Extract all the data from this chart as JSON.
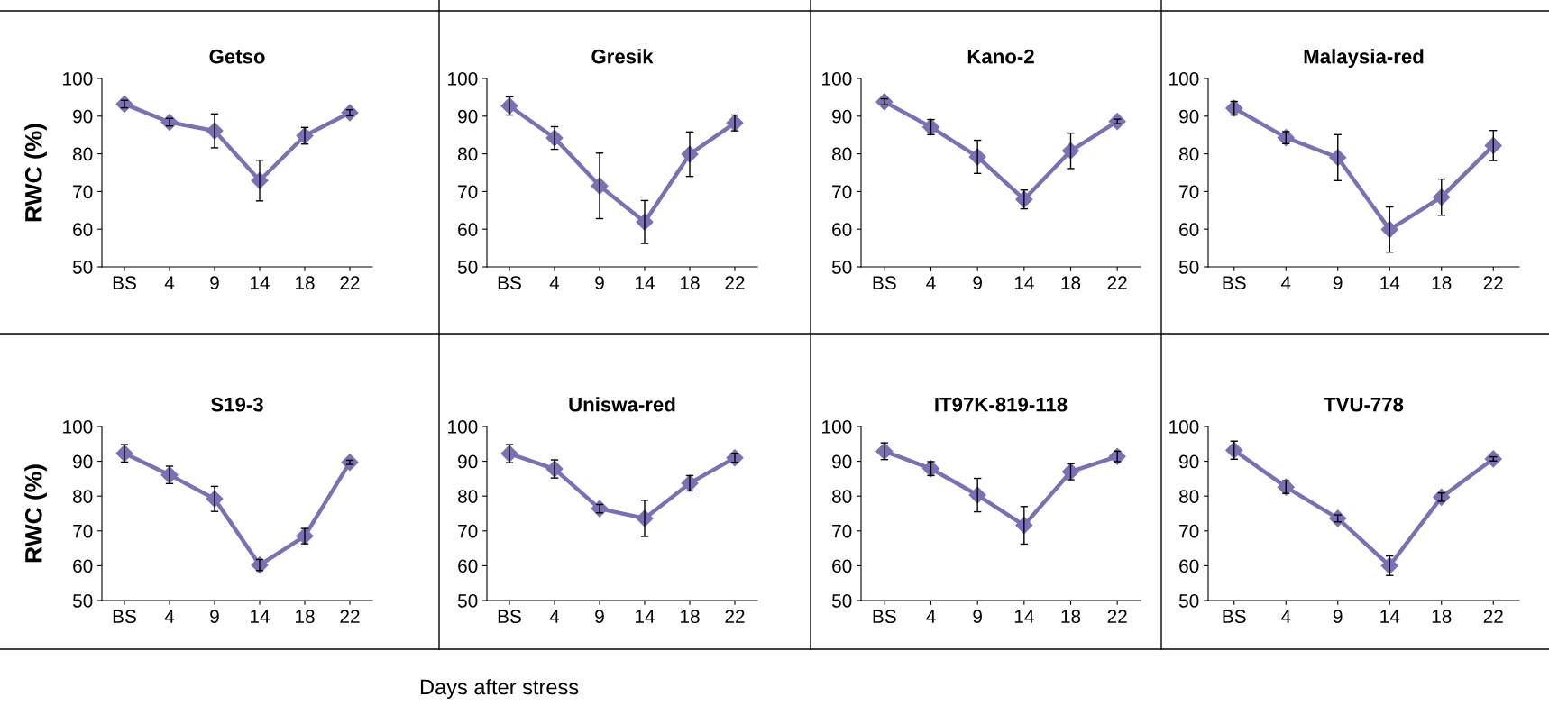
{
  "chart_data": [
    {
      "type": "line",
      "title": "Getso",
      "ylabel": "RWC (%)",
      "categories": [
        "BS",
        "4",
        "9",
        "14",
        "18",
        "22"
      ],
      "ylim": [
        50,
        100
      ],
      "yticks": [
        50,
        60,
        70,
        80,
        90,
        100
      ],
      "marker": "diamond",
      "grid": false,
      "series": [
        {
          "color": "#7b70b5",
          "values": [
            93.2,
            88.4,
            86.1,
            72.9,
            84.8,
            90.9
          ],
          "errors": [
            1.0,
            1.0,
            4.5,
            5.4,
            2.2,
            0.8
          ]
        }
      ]
    },
    {
      "type": "line",
      "title": "Gresik",
      "categories": [
        "BS",
        "4",
        "9",
        "14",
        "18",
        "22"
      ],
      "ylim": [
        50,
        100
      ],
      "yticks": [
        50,
        60,
        70,
        80,
        90,
        100
      ],
      "marker": "diamond",
      "grid": false,
      "series": [
        {
          "color": "#7b70b5",
          "values": [
            92.7,
            84.2,
            71.5,
            61.9,
            79.9,
            88.2
          ],
          "errors": [
            2.4,
            3.0,
            8.7,
            5.7,
            5.9,
            2.1
          ]
        }
      ]
    },
    {
      "type": "line",
      "title": "Kano-2",
      "categories": [
        "BS",
        "4",
        "9",
        "14",
        "18",
        "22"
      ],
      "ylim": [
        50,
        100
      ],
      "yticks": [
        50,
        60,
        70,
        80,
        90,
        100
      ],
      "marker": "diamond",
      "grid": false,
      "series": [
        {
          "color": "#7b70b5",
          "values": [
            93.8,
            87.1,
            79.2,
            67.9,
            80.8,
            88.6
          ],
          "errors": [
            0.8,
            2.0,
            4.4,
            2.5,
            4.7,
            0.6
          ]
        }
      ]
    },
    {
      "type": "line",
      "title": "Malaysia-red",
      "categories": [
        "BS",
        "4",
        "9",
        "14",
        "18",
        "22"
      ],
      "ylim": [
        50,
        100
      ],
      "yticks": [
        50,
        60,
        70,
        80,
        90,
        100
      ],
      "marker": "diamond",
      "grid": false,
      "series": [
        {
          "color": "#7b70b5",
          "values": [
            92.1,
            84.3,
            79.0,
            59.9,
            68.5,
            82.2
          ],
          "errors": [
            1.8,
            1.6,
            6.1,
            6.0,
            4.8,
            4.0
          ]
        }
      ]
    },
    {
      "type": "line",
      "title": "S19-3",
      "ylabel": "RWC (%)",
      "categories": [
        "BS",
        "4",
        "9",
        "14",
        "18",
        "22"
      ],
      "ylim": [
        50,
        100
      ],
      "yticks": [
        50,
        60,
        70,
        80,
        90,
        100
      ],
      "marker": "diamond",
      "grid": false,
      "series": [
        {
          "color": "#7b70b5",
          "values": [
            92.3,
            86.1,
            79.2,
            60.2,
            68.5,
            89.7
          ],
          "errors": [
            2.5,
            2.5,
            3.6,
            1.6,
            2.2,
            0.6
          ]
        }
      ]
    },
    {
      "type": "line",
      "title": "Uniswa-red",
      "categories": [
        "BS",
        "4",
        "9",
        "14",
        "18",
        "22"
      ],
      "ylim": [
        50,
        100
      ],
      "yticks": [
        50,
        60,
        70,
        80,
        90,
        100
      ],
      "marker": "diamond",
      "grid": false,
      "annotations": [
        "Days after stress"
      ],
      "series": [
        {
          "color": "#7b70b5",
          "values": [
            92.2,
            87.8,
            76.4,
            73.6,
            83.7,
            91.0
          ],
          "errors": [
            2.6,
            2.6,
            1.2,
            5.2,
            2.2,
            1.3
          ]
        }
      ]
    },
    {
      "type": "line",
      "title": "IT97K-819-118",
      "categories": [
        "BS",
        "4",
        "9",
        "14",
        "18",
        "22"
      ],
      "ylim": [
        50,
        100
      ],
      "yticks": [
        50,
        60,
        70,
        80,
        90,
        100
      ],
      "marker": "diamond",
      "grid": false,
      "series": [
        {
          "color": "#7b70b5",
          "values": [
            92.9,
            87.9,
            80.3,
            71.6,
            87.0,
            91.4
          ],
          "errors": [
            2.4,
            2.0,
            4.8,
            5.4,
            2.3,
            1.5
          ]
        }
      ]
    },
    {
      "type": "line",
      "title": "TVU-778",
      "categories": [
        "BS",
        "4",
        "9",
        "14",
        "18",
        "22"
      ],
      "ylim": [
        50,
        100
      ],
      "yticks": [
        50,
        60,
        70,
        80,
        90,
        100
      ],
      "marker": "diamond",
      "grid": false,
      "series": [
        {
          "color": "#7b70b5",
          "values": [
            93.2,
            82.6,
            73.6,
            60.0,
            79.7,
            90.7
          ],
          "errors": [
            2.6,
            1.8,
            1.0,
            2.8,
            1.2,
            0.6
          ]
        }
      ]
    }
  ]
}
